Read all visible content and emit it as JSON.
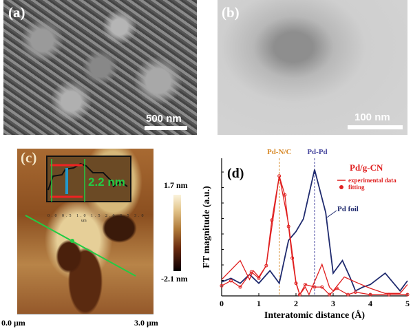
{
  "panels": {
    "a": {
      "label": "(a)",
      "scale": "500 nm"
    },
    "b": {
      "label": "(b)",
      "scale": "100 nm"
    },
    "c": {
      "label": "(c)",
      "step_height": "2.2 nm",
      "colorbar_max": "1.7 nm",
      "colorbar_min": "-2.1 nm",
      "x_start": "0.0 μm",
      "x_end": "3.0 μm",
      "inset_ticks": [
        "0.0",
        "0.5",
        "1.0",
        "1.5",
        "2.0",
        "2.5",
        "3.0"
      ],
      "inset_xlabel": "um"
    },
    "d": {
      "label": "(d)"
    }
  },
  "colors": {
    "pd_foil": "#1f2a6e",
    "pd_gcn": "#e02020",
    "pdnc_line": "#d88a2a",
    "pdpd_line": "#4a4aa0"
  },
  "chart_data": {
    "type": "line",
    "title": "",
    "xlabel": "Interatomic distance (Å)",
    "ylabel": "FT magnitude (a.u.)",
    "xlim": [
      0,
      5
    ],
    "ylim": [
      0,
      1.09
    ],
    "xticks": [
      "0",
      "1",
      "2",
      "3",
      "4",
      "5"
    ],
    "annotations": {
      "pd_nc": {
        "text": "Pd-N/C",
        "x": 1.55
      },
      "pd_pd": {
        "text": "Pd-Pd",
        "x": 2.5
      },
      "sample": "Pd/g-CN",
      "foil_label": "Pd foil"
    },
    "legend": {
      "position": "top-right",
      "entries": [
        "experimental data",
        "fitting"
      ]
    },
    "series": [
      {
        "name": "Pd foil",
        "x": [
          0,
          0.25,
          0.5,
          0.75,
          1.0,
          1.3,
          1.55,
          1.8,
          2.0,
          2.2,
          2.5,
          2.8,
          3.0,
          3.25,
          3.45,
          3.6,
          3.8,
          4.0,
          4.4,
          4.8,
          5.0
        ],
        "y": [
          0.11,
          0.14,
          0.1,
          0.17,
          0.1,
          0.2,
          0.1,
          0.44,
          0.51,
          0.61,
          1.0,
          0.66,
          0.18,
          0.28,
          0.15,
          0.04,
          0.07,
          0.09,
          0.18,
          0.04,
          0.12
        ]
      },
      {
        "name": "experimental data",
        "x": [
          0,
          0.5,
          0.75,
          0.85,
          1.0,
          1.2,
          1.55,
          1.8,
          2.0,
          2.1,
          2.25,
          2.35,
          2.7,
          2.9,
          3.0,
          3.3,
          3.6,
          4.0,
          4.4,
          4.8,
          5.0
        ],
        "y": [
          0.13,
          0.28,
          0.13,
          0.2,
          0.15,
          0.24,
          0.95,
          0.57,
          0.11,
          0.01,
          0.07,
          0.01,
          0.25,
          0.07,
          0.04,
          0.15,
          0.11,
          0.06,
          0.02,
          0.02,
          0.09
        ]
      },
      {
        "name": "fitting",
        "x": [
          0,
          0.25,
          0.5,
          0.8,
          1.0,
          1.2,
          1.35,
          1.55,
          1.7,
          1.8,
          1.9,
          2.0,
          2.1,
          2.25,
          2.5,
          2.7,
          2.9,
          3.1,
          3.4,
          3.6,
          4.0,
          4.5,
          5.0
        ],
        "y": [
          0.08,
          0.12,
          0.07,
          0.19,
          0.14,
          0.24,
          0.6,
          0.95,
          0.8,
          0.55,
          0.3,
          0.1,
          0.01,
          0.09,
          0.07,
          0.07,
          0.01,
          0.06,
          0.01,
          0.03,
          0.01,
          0.01,
          0.01
        ]
      }
    ]
  }
}
